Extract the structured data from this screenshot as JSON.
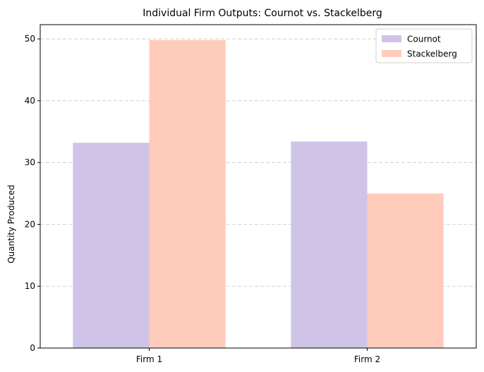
{
  "chart_data": {
    "type": "bar",
    "title": "Individual Firm Outputs: Cournot vs. Stackelberg",
    "xlabel": "",
    "ylabel": "Quantity Produced",
    "categories": [
      "Firm 1",
      "Firm 2"
    ],
    "series": [
      {
        "name": "Cournot",
        "values": [
          33.2,
          33.4
        ],
        "color": "#cfc4e8"
      },
      {
        "name": "Stackelberg",
        "values": [
          49.8,
          25.0
        ],
        "color": "#ffcbbb"
      }
    ],
    "ylim": [
      0,
      52.3
    ],
    "yticks": [
      0,
      10,
      20,
      30,
      40,
      50
    ],
    "grid": {
      "y": true,
      "style": "dashed",
      "color": "#c8c8c8"
    },
    "legend": "top-right"
  }
}
